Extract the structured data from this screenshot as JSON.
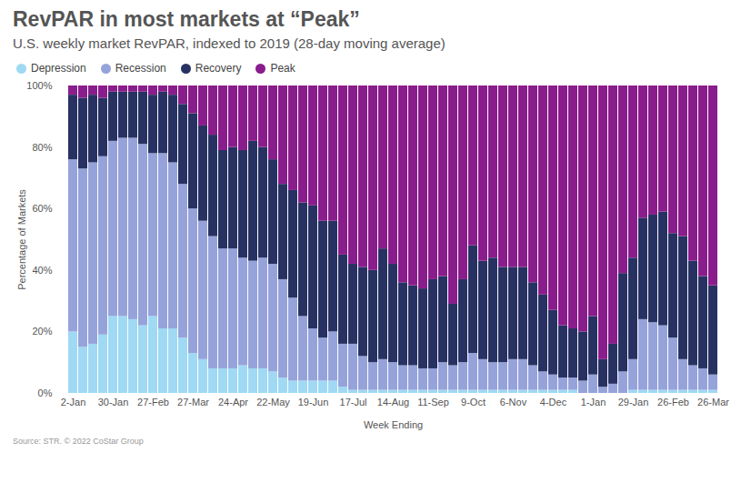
{
  "chart_data": {
    "type": "bar",
    "stacked": true,
    "title": "RevPAR in most markets at “Peak”",
    "subtitle": "U.S. weekly market RevPAR, indexed to 2019 (28-day moving average)",
    "xlabel": "Week Ending",
    "ylabel": "Percentage of Markets",
    "source": "Source: STR. © 2022 CoStar Group",
    "legend": "top-left",
    "grid": false,
    "categories": [
      "2-Jan",
      null,
      null,
      null,
      "30-Jan",
      null,
      null,
      null,
      "27-Feb",
      null,
      null,
      null,
      "27-Mar",
      null,
      null,
      null,
      "24-Apr",
      null,
      null,
      null,
      "22-May",
      null,
      null,
      null,
      "19-Jun",
      null,
      null,
      null,
      "17-Jul",
      null,
      null,
      null,
      "14-Aug",
      null,
      null,
      null,
      "11-Sep",
      null,
      null,
      null,
      "9-Oct",
      null,
      null,
      null,
      "6-Nov",
      null,
      null,
      null,
      "4-Dec",
      null,
      null,
      null,
      "1-Jan",
      null,
      null,
      null,
      "29-Jan",
      null,
      null,
      null,
      "26-Feb",
      null,
      null,
      null,
      "26-Mar"
    ],
    "ylim": [
      0,
      100
    ],
    "yticks": [
      {
        "value": 0,
        "label": "0%"
      },
      {
        "value": 20,
        "label": "20%"
      },
      {
        "value": 40,
        "label": "40%"
      },
      {
        "value": 60,
        "label": "60%"
      },
      {
        "value": 80,
        "label": "80%"
      },
      {
        "value": 100,
        "label": "100%"
      }
    ],
    "series": [
      {
        "name": "Depression",
        "color": "#9fd9f4",
        "values": [
          20,
          15,
          16,
          19,
          25,
          25,
          24,
          22,
          25,
          21,
          21,
          18,
          13,
          11,
          8,
          8,
          8,
          9,
          8,
          8,
          7,
          5,
          4,
          4,
          4,
          4,
          4,
          2,
          1,
          1,
          1,
          1,
          1,
          1,
          1,
          1,
          1,
          1,
          1,
          1,
          1,
          1,
          1,
          1,
          1,
          1,
          1,
          1,
          1,
          1,
          1,
          0,
          0,
          0,
          0,
          0,
          1,
          1,
          1,
          1,
          1,
          1,
          1,
          1,
          1
        ]
      },
      {
        "name": "Recession",
        "color": "#96a3db",
        "values": [
          56,
          58,
          59,
          58,
          57,
          58,
          59,
          59,
          53,
          57,
          54,
          50,
          47,
          45,
          43,
          39,
          39,
          35,
          35,
          36,
          35,
          32,
          27,
          21,
          17,
          14,
          16,
          14,
          15,
          11,
          9,
          10,
          9,
          8,
          8,
          7,
          7,
          9,
          8,
          9,
          12,
          10,
          9,
          9,
          10,
          10,
          8,
          6,
          5,
          4,
          4,
          4,
          6,
          2,
          3,
          7,
          10,
          23,
          22,
          21,
          17,
          10,
          8,
          7,
          5
        ]
      },
      {
        "name": "Recovery",
        "color": "#283262",
        "values": [
          21,
          23,
          22,
          19,
          16,
          15,
          15,
          17,
          19,
          20,
          22,
          26,
          31,
          31,
          33,
          32,
          33,
          35,
          39,
          36,
          34,
          31,
          35,
          37,
          40,
          38,
          36,
          29,
          26,
          29,
          30,
          36,
          32,
          27,
          26,
          26,
          29,
          28,
          20,
          27,
          35,
          32,
          34,
          31,
          30,
          30,
          27,
          25,
          21,
          17,
          16,
          16,
          19,
          9,
          13,
          32,
          33,
          33,
          35,
          37,
          34,
          40,
          34,
          30,
          29
        ]
      },
      {
        "name": "Peak",
        "color": "#8a1d8c",
        "values": [
          3,
          4,
          3,
          4,
          2,
          2,
          2,
          2,
          3,
          2,
          3,
          6,
          9,
          13,
          16,
          21,
          20,
          21,
          18,
          20,
          24,
          32,
          34,
          38,
          39,
          44,
          44,
          55,
          58,
          59,
          60,
          53,
          58,
          64,
          65,
          66,
          63,
          62,
          71,
          63,
          52,
          57,
          56,
          59,
          59,
          59,
          64,
          68,
          73,
          78,
          79,
          80,
          75,
          89,
          84,
          61,
          56,
          43,
          42,
          41,
          48,
          49,
          57,
          62,
          65
        ]
      }
    ]
  }
}
